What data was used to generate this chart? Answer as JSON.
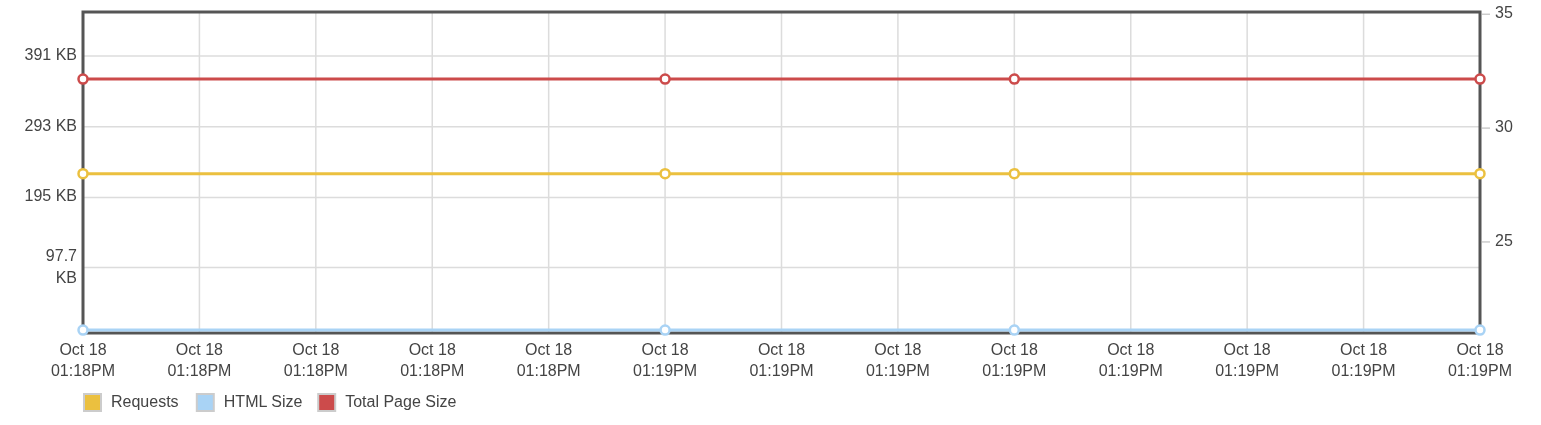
{
  "chart_data": {
    "type": "line",
    "categories": [
      "Oct 18\n01:18PM",
      "Oct 18\n01:18PM",
      "Oct 18\n01:18PM",
      "Oct 18\n01:18PM",
      "Oct 18\n01:18PM",
      "Oct 18\n01:19PM",
      "Oct 18\n01:19PM",
      "Oct 18\n01:19PM",
      "Oct 18\n01:19PM",
      "Oct 18\n01:19PM",
      "Oct 18\n01:19PM",
      "Oct 18\n01:19PM",
      "Oct 18\n01:19PM"
    ],
    "ylim": [
      7,
      452
    ],
    "yticks": [
      {
        "value": 97.7,
        "label": "97.7 KB"
      },
      {
        "value": 195,
        "label": "195 KB"
      },
      {
        "value": 293,
        "label": "293 KB"
      },
      {
        "value": 391,
        "label": "391 KB"
      }
    ],
    "y2lim": [
      21,
      35.1
    ],
    "y2ticks": [
      25,
      30,
      35
    ],
    "series": [
      {
        "name": "Requests",
        "color": "#ebc03f",
        "axis": "y2",
        "values": [
          28,
          null,
          null,
          null,
          null,
          28,
          null,
          null,
          28,
          null,
          null,
          null,
          28
        ]
      },
      {
        "name": "HTML Size",
        "color": "#a9d3f5",
        "values": [
          11,
          null,
          null,
          null,
          null,
          11,
          null,
          null,
          11,
          null,
          null,
          null,
          11
        ]
      },
      {
        "name": "Total Page Size",
        "color": "#cc4b4b",
        "values": [
          359,
          null,
          null,
          null,
          null,
          359,
          null,
          null,
          359,
          null,
          null,
          null,
          359
        ]
      }
    ],
    "grid": true,
    "legend": "bottom left",
    "marker": "circle",
    "line_style": "solid"
  }
}
